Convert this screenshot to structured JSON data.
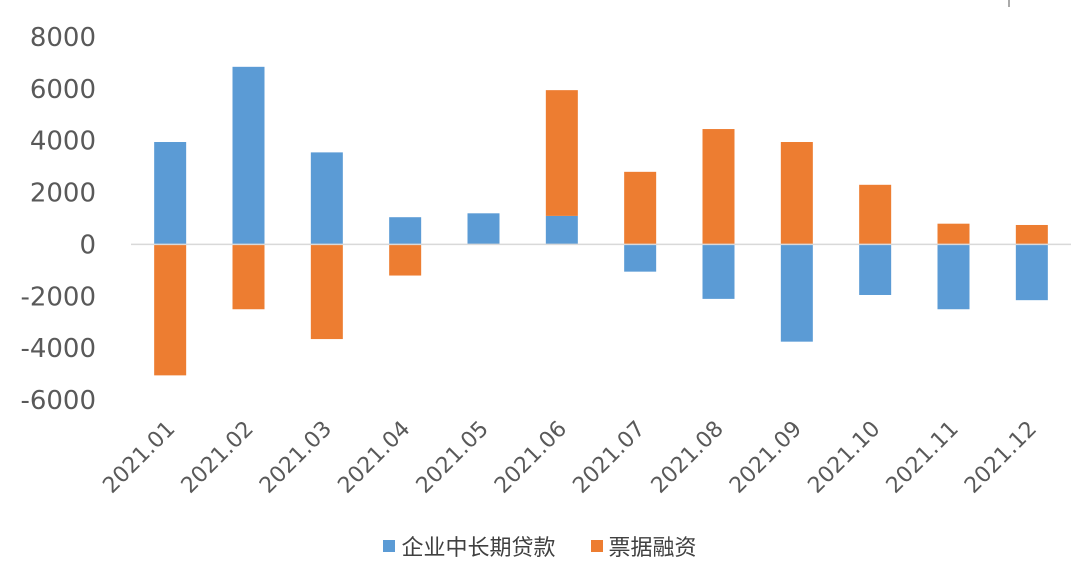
{
  "chart_data": {
    "type": "bar",
    "stacked": true,
    "categories": [
      "2021.01",
      "2021.02",
      "2021.03",
      "2021.04",
      "2021.05",
      "2021.06",
      "2021.07",
      "2021.08",
      "2021.09",
      "2021.10",
      "2021.11",
      "2021.12"
    ],
    "series": [
      {
        "name": "企业中长期贷款",
        "color": "#5B9BD5",
        "values": [
          3950,
          6850,
          3550,
          1050,
          1200,
          1100,
          -1050,
          -2100,
          -3750,
          -1950,
          -2500,
          -2150
        ]
      },
      {
        "name": "票据融资",
        "color": "#ED7D31",
        "values": [
          -5050,
          -2500,
          -3650,
          -1200,
          0,
          4850,
          2800,
          4450,
          3950,
          2300,
          800,
          750
        ]
      }
    ],
    "yticks": [
      "8000",
      "6000",
      "4000",
      "2000",
      "0",
      "-2000",
      "-4000",
      "-6000"
    ],
    "ylim": [
      -6000,
      8000
    ],
    "xlabel": "",
    "ylabel": "",
    "legend_position": "bottom",
    "grid": false
  }
}
